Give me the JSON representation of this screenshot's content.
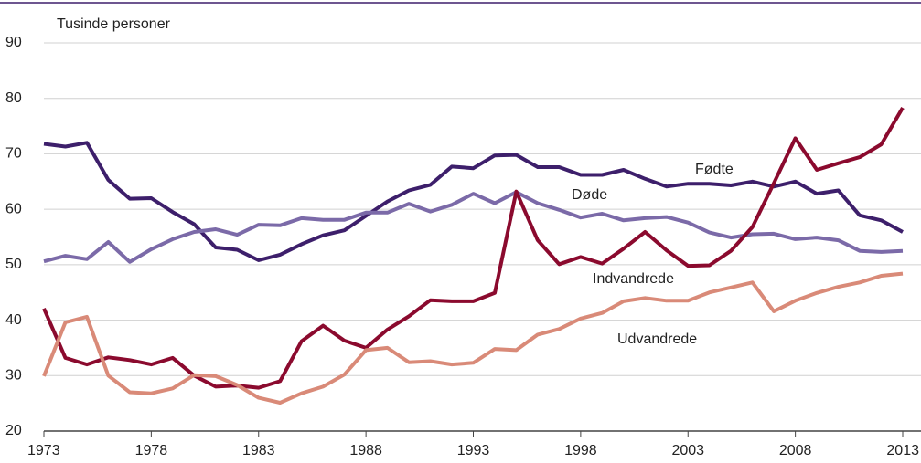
{
  "chart_data": {
    "type": "line",
    "title": "Tusinde personer",
    "x": [
      1973,
      1974,
      1975,
      1976,
      1977,
      1978,
      1979,
      1980,
      1981,
      1982,
      1983,
      1984,
      1985,
      1986,
      1987,
      1988,
      1989,
      1990,
      1991,
      1992,
      1993,
      1994,
      1995,
      1996,
      1997,
      1998,
      1999,
      2000,
      2001,
      2002,
      2003,
      2004,
      2005,
      2006,
      2007,
      2008,
      2009,
      2010,
      2011,
      2012,
      2013
    ],
    "xlim": [
      1973,
      2013
    ],
    "xticks": [
      1973,
      1978,
      1983,
      1988,
      1993,
      1998,
      2003,
      2008,
      2013
    ],
    "ylim": [
      20,
      90
    ],
    "yticks": [
      20,
      30,
      40,
      50,
      60,
      70,
      80,
      90
    ],
    "grid": true,
    "series": [
      {
        "name": "Fødte",
        "color": "#3d1f6b",
        "values": [
          71.8,
          71.3,
          72.0,
          65.3,
          61.9,
          62.0,
          59.5,
          57.3,
          53.1,
          52.7,
          50.8,
          51.8,
          53.7,
          55.3,
          56.2,
          58.8,
          61.4,
          63.4,
          64.4,
          67.7,
          67.4,
          69.7,
          69.8,
          67.6,
          67.6,
          66.2,
          66.2,
          67.1,
          65.5,
          64.1,
          64.6,
          64.6,
          64.3,
          65.0,
          64.1,
          65.0,
          62.8,
          63.4,
          58.9,
          58.0,
          55.9
        ]
      },
      {
        "name": "Døde",
        "color": "#7b6aa8",
        "values": [
          50.6,
          51.6,
          51.0,
          54.1,
          50.5,
          52.8,
          54.6,
          55.9,
          56.4,
          55.4,
          57.2,
          57.1,
          58.4,
          58.1,
          58.1,
          59.4,
          59.4,
          61.0,
          59.6,
          60.8,
          62.8,
          61.1,
          63.1,
          61.1,
          59.9,
          58.5,
          59.2,
          58.0,
          58.4,
          58.6,
          57.6,
          55.8,
          54.9,
          55.5,
          55.6,
          54.6,
          54.9,
          54.4,
          52.5,
          52.3,
          52.5
        ]
      },
      {
        "name": "Indvandrede",
        "color": "#8b0a2e",
        "values": [
          42.1,
          33.2,
          32.0,
          33.3,
          32.8,
          32.0,
          33.2,
          30.0,
          28.0,
          28.2,
          27.8,
          29.0,
          36.2,
          39.0,
          36.3,
          35.0,
          38.3,
          40.7,
          43.6,
          43.4,
          43.4,
          44.9,
          63.2,
          54.4,
          50.1,
          51.4,
          50.2,
          52.9,
          55.9,
          52.6,
          49.8,
          49.9,
          52.5,
          56.8,
          64.7,
          72.8,
          67.1,
          68.3,
          69.4,
          71.7,
          78.3
        ]
      },
      {
        "name": "Udvandrede",
        "color": "#d98a78",
        "values": [
          29.9,
          39.6,
          40.6,
          30.0,
          27.0,
          26.8,
          27.7,
          30.1,
          29.9,
          28.3,
          26.0,
          25.1,
          26.8,
          28.0,
          30.2,
          34.6,
          35.0,
          32.4,
          32.6,
          32.0,
          32.3,
          34.8,
          34.6,
          37.4,
          38.4,
          40.3,
          41.3,
          43.4,
          44.0,
          43.5,
          43.5,
          45.0,
          45.9,
          46.8,
          41.6,
          43.5,
          44.9,
          46.0,
          46.8,
          48.0,
          48.4
        ]
      }
    ]
  }
}
